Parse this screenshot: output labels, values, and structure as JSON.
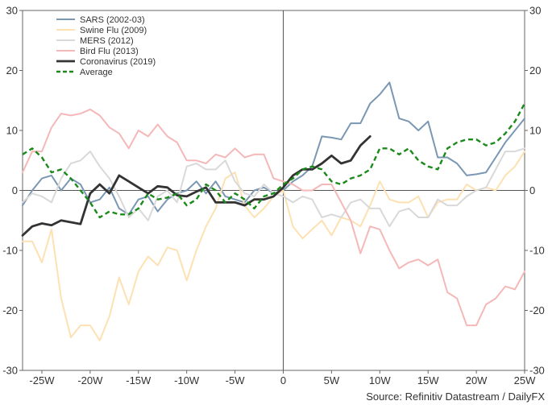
{
  "chart_data": {
    "type": "line",
    "title": "",
    "xlabel": "",
    "ylabel": "",
    "xlim": [
      -27,
      25
    ],
    "ylim": [
      -30,
      30
    ],
    "x_ticks": [
      -25,
      -20,
      -15,
      -10,
      -5,
      0,
      5,
      10,
      15,
      20,
      25
    ],
    "x_tick_labels": [
      "-25W",
      "-20W",
      "-15W",
      "-10W",
      "-5W",
      "0",
      "5W",
      "10W",
      "15W",
      "20W",
      "25W"
    ],
    "y_ticks": [
      -30,
      -20,
      -10,
      0,
      10,
      20,
      30
    ],
    "y_tick_labels": [
      "-30",
      "-20",
      "-10",
      "0",
      "10",
      "20",
      "30"
    ],
    "grid": false,
    "zero_lines": true,
    "legend": "top-left",
    "source": "Source: Refinitiv Datastream / DailyFX",
    "series": [
      {
        "name": "SARS (2002-03)",
        "color": "#7a97b3",
        "style": "solid",
        "x": [
          -27,
          -26,
          -25,
          -24,
          -23,
          -22,
          -21,
          -20,
          -19,
          -18,
          -17,
          -16,
          -15,
          -14,
          -13,
          -12,
          -11,
          -10,
          -9,
          -8,
          -7,
          -6,
          -5,
          -4,
          -3,
          -2,
          -1,
          0,
          1,
          2,
          3,
          4,
          5,
          6,
          7,
          8,
          9,
          10,
          11,
          12,
          13,
          14,
          15,
          16,
          17,
          18,
          19,
          20,
          21,
          22,
          23,
          24,
          25
        ],
        "y": [
          -2.5,
          0,
          2,
          2.5,
          0,
          2,
          1,
          -2,
          -1.5,
          0.5,
          -3,
          -4,
          -1.5,
          -1,
          -3.5,
          -1.5,
          -0.5,
          0,
          1.5,
          -0.5,
          1.5,
          -1,
          -1.5,
          -2,
          0,
          0.5,
          -0.5,
          0,
          1.5,
          2.5,
          4,
          9,
          8.8,
          8.5,
          11.2,
          11.2,
          14.5,
          16,
          18,
          12,
          11.5,
          10,
          11.5,
          5.5,
          5.5,
          4.5,
          2.5,
          2.7,
          3,
          5.5,
          8,
          10,
          12
        ]
      },
      {
        "name": "Swine Flu (2009)",
        "color": "#fde1b3",
        "style": "solid",
        "x": [
          -27,
          -26,
          -25,
          -24,
          -23,
          -22,
          -21,
          -20,
          -19,
          -18,
          -17,
          -16,
          -15,
          -14,
          -13,
          -12,
          -11,
          -10,
          -9,
          -8,
          -7,
          -6,
          -5,
          -4,
          -3,
          -2,
          -1,
          0,
          1,
          2,
          3,
          4,
          5,
          6,
          7,
          8,
          9,
          10,
          11,
          12,
          13,
          14,
          15,
          16,
          17,
          18,
          19,
          20,
          21,
          22,
          23,
          24,
          25
        ],
        "y": [
          -8.5,
          -8.5,
          -12,
          -6.5,
          -18,
          -24.5,
          -22.5,
          -22.5,
          -25,
          -21,
          -14.5,
          -19,
          -13.5,
          -11,
          -12.5,
          -9.5,
          -10,
          -15,
          -10,
          -6,
          -3,
          2,
          3,
          -2.5,
          -4.5,
          -3,
          -1,
          0,
          -6,
          -8,
          -6.5,
          -5,
          -7.5,
          -4.5,
          -5,
          -6,
          -2.5,
          1.5,
          -1.5,
          -2,
          -2,
          -1,
          -4.5,
          -2,
          -1.5,
          -1.5,
          1,
          0,
          0.5,
          0,
          2.5,
          4,
          6.5
        ]
      },
      {
        "name": "MERS (2012)",
        "color": "#d9d9d9",
        "style": "solid",
        "x": [
          -27,
          -26,
          -25,
          -24,
          -23,
          -22,
          -21,
          -20,
          -19,
          -18,
          -17,
          -16,
          -15,
          -14,
          -13,
          -12,
          -11,
          -10,
          -9,
          -8,
          -7,
          -6,
          -5,
          -4,
          -3,
          -2,
          -1,
          0,
          1,
          2,
          3,
          4,
          5,
          6,
          7,
          8,
          9,
          10,
          11,
          12,
          13,
          14,
          15,
          16,
          17,
          18,
          19,
          20,
          21,
          22,
          23,
          24,
          25
        ],
        "y": [
          -2,
          -0.5,
          -1,
          -2,
          2,
          4.5,
          5,
          6.5,
          4,
          2,
          -1,
          -4.5,
          -3,
          -5,
          -1,
          0,
          -2,
          4,
          4.5,
          3.5,
          3.5,
          5,
          1.5,
          -0.5,
          -1,
          1,
          -0.5,
          -1,
          -2,
          -1,
          -1.5,
          -4.5,
          -4,
          -4.5,
          -2,
          -1.5,
          -3,
          -3,
          -6,
          -3.5,
          -3,
          -4.5,
          -4.5,
          -1.5,
          -2.5,
          -2.5,
          -1,
          0,
          0.5,
          3.5,
          6.5,
          6.5,
          7
        ]
      },
      {
        "name": "Bird Flu (2013)",
        "color": "#f5b8b8",
        "style": "solid",
        "x": [
          -27,
          -26,
          -25,
          -24,
          -23,
          -22,
          -21,
          -20,
          -19,
          -18,
          -17,
          -16,
          -15,
          -14,
          -13,
          -12,
          -11,
          -10,
          -9,
          -8,
          -7,
          -6,
          -5,
          -4,
          -3,
          -2,
          -1,
          0,
          1,
          2,
          3,
          4,
          5,
          6,
          7,
          8,
          9,
          10,
          11,
          12,
          13,
          14,
          15,
          16,
          17,
          18,
          19,
          20,
          21,
          22,
          23,
          24,
          25
        ],
        "y": [
          3,
          6.5,
          6.5,
          10.5,
          12.8,
          12.5,
          12.8,
          13.5,
          12.5,
          10.5,
          9.5,
          7,
          10,
          9,
          11,
          9,
          8,
          5,
          5,
          4.5,
          6,
          5.5,
          7,
          5.5,
          6,
          6,
          2,
          1.5,
          1,
          0,
          0,
          1,
          1,
          -2,
          -5,
          -10.5,
          -6,
          -6.5,
          -10,
          -13,
          -12,
          -11.5,
          -12.5,
          -11.5,
          -17,
          -18,
          -22.5,
          -22.5,
          -19,
          -18,
          -16,
          -16.5,
          -13.5
        ]
      },
      {
        "name": "Coronavirus (2019)",
        "color": "#333333",
        "style": "solid",
        "x": [
          -27,
          -26,
          -25,
          -24,
          -23,
          -22,
          -21,
          -20,
          -19,
          -18,
          -17,
          -16,
          -15,
          -14,
          -13,
          -12,
          -11,
          -10,
          -9,
          -8,
          -7,
          -6,
          -5,
          -4,
          -3,
          -2,
          -1,
          0,
          1,
          2,
          3,
          4,
          5,
          6,
          7,
          8,
          9
        ],
        "y": [
          -7.5,
          -6,
          -5.5,
          -5.8,
          -5,
          -5.3,
          -5.6,
          -0.5,
          1,
          -0.5,
          2.5,
          1.5,
          0.5,
          -0.5,
          0.7,
          0.5,
          -0.8,
          -1,
          -0.2,
          0.5,
          -2,
          -2,
          -2,
          -2.5,
          -1.5,
          -1.5,
          -1,
          0.5,
          2.5,
          3.5,
          3.5,
          4.5,
          5.8,
          4.5,
          5,
          7.5,
          9
        ]
      },
      {
        "name": "Average",
        "color": "#1a8a1a",
        "style": "dashed",
        "x": [
          -27,
          -26,
          -25,
          -24,
          -23,
          -22,
          -21,
          -20,
          -19,
          -18,
          -17,
          -16,
          -15,
          -14,
          -13,
          -12,
          -11,
          -10,
          -9,
          -8,
          -7,
          -6,
          -5,
          -4,
          -3,
          -2,
          -1,
          0,
          1,
          2,
          3,
          4,
          5,
          6,
          7,
          8,
          9,
          10,
          11,
          12,
          13,
          14,
          15,
          16,
          17,
          18,
          19,
          20,
          21,
          22,
          23,
          24,
          25
        ],
        "y": [
          6,
          7,
          5.5,
          3,
          3.5,
          2,
          0,
          -2,
          -4.5,
          -3.5,
          -4,
          -4,
          -3,
          -0.5,
          -1.5,
          -1.2,
          -0.5,
          -2.5,
          -1.5,
          1,
          0,
          -2,
          -0.5,
          -1.5,
          -3,
          -1,
          -0.5,
          1,
          2,
          3.5,
          4,
          3.5,
          1.5,
          1,
          2,
          2.5,
          3.5,
          7,
          7,
          6,
          7,
          5,
          4,
          3.5,
          7,
          8,
          8.5,
          8.5,
          7.5,
          8,
          9.5,
          11.5,
          14.5
        ]
      }
    ]
  }
}
